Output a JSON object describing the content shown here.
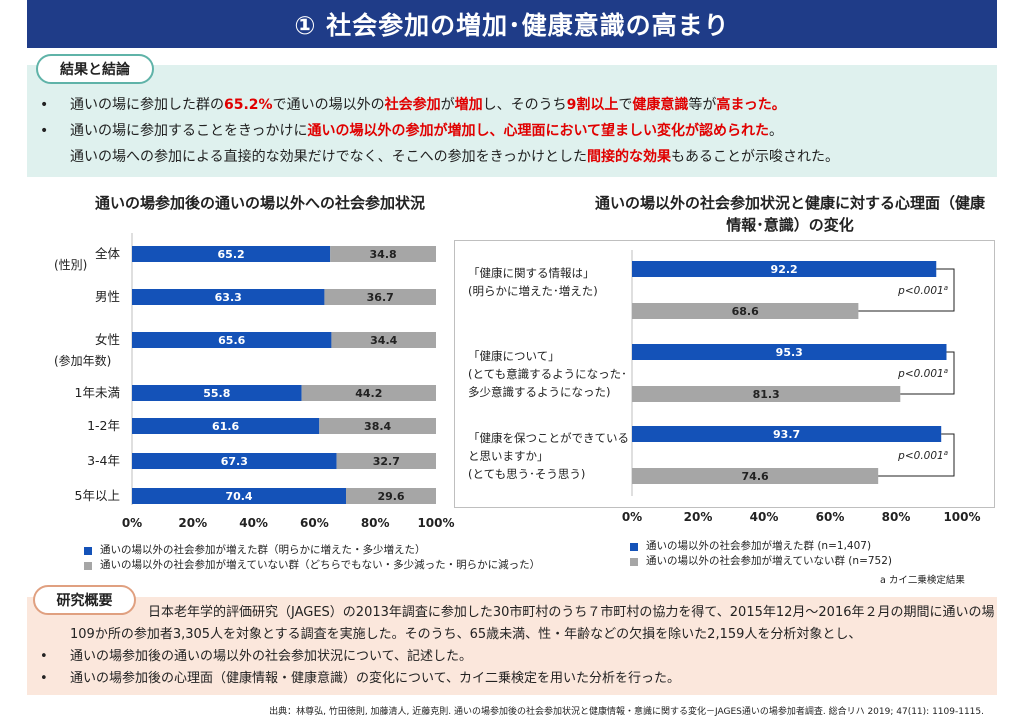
{
  "title": "① 社会参加の増加･健康意識の高まり",
  "results": {
    "badge": "結果と結論",
    "b1": {
      "t1": "通いの場に参加した群の",
      "e1": "65.2%",
      "t2": "で通いの場以外の",
      "e2": "社会参加",
      "t3": "が",
      "e3": "増加",
      "t4": "し、そのうち",
      "e4": "9割以上",
      "t5": "で",
      "e5": "健康意識",
      "t6": "等が",
      "e6": "高まった。"
    },
    "b2": {
      "t1": "通いの場に参加することをきっかけに",
      "e1": "通いの場以外の参加が増加し、心理面において望ましい変化が認められた",
      "t2": "。"
    },
    "b3": {
      "t1": "通いの場への参加による直接的な効果だけでなく、そこへの参加をきっかけとした",
      "e1": "間接的な効果",
      "t2": "もあることが示唆された。"
    }
  },
  "chart_data": [
    {
      "type": "bar",
      "orientation": "horizontal",
      "stacked": true,
      "title": "通いの場参加後の通いの場以外への社会参加状況",
      "categories": [
        "全体",
        "男性",
        "女性",
        "1年未満",
        "1-2年",
        "3-4年",
        "5年以上"
      ],
      "group_labels": [
        "(性別)",
        "(参加年数)"
      ],
      "series": [
        {
          "name": "通いの場以外の社会参加が増えた群（明らかに増えた・多少増えた）",
          "color": "#1452b8",
          "values": [
            65.2,
            63.3,
            65.6,
            55.8,
            61.6,
            67.3,
            70.4
          ]
        },
        {
          "name": "通いの場以外の社会参加が増えていない群（どちらでもない・多少減った・明らかに減った）",
          "color": "#a6a6a6",
          "values": [
            34.8,
            36.7,
            34.4,
            44.2,
            38.4,
            32.7,
            29.6
          ]
        }
      ],
      "xlim": [
        0,
        100
      ],
      "x_ticks": [
        "0%",
        "20%",
        "40%",
        "60%",
        "80%",
        "100%"
      ]
    },
    {
      "type": "bar",
      "orientation": "horizontal",
      "title": "通いの場以外の社会参加状況と健康に対する心理面（健康情報･意識）の変化",
      "categories": [
        {
          "lines": [
            "「健康に関する情報は」",
            "(明らかに増えた･増えた)"
          ]
        },
        {
          "lines": [
            "「健康について」",
            "(とても意識するようになった･",
            "多少意識するようになった)"
          ]
        },
        {
          "lines": [
            "「健康を保つことができている",
            "と思いますか」",
            "(とても思う･そう思う)"
          ]
        }
      ],
      "series": [
        {
          "name": "通いの場以外の社会参加が増えた群 (n=1,407)",
          "color": "#1452b8",
          "values": [
            92.2,
            95.3,
            93.7
          ]
        },
        {
          "name": "通いの場以外の社会参加が増えていない群 (n=752)",
          "color": "#a6a6a6",
          "values": [
            68.6,
            81.3,
            74.6
          ]
        }
      ],
      "annotations": [
        "p<0.001",
        "p<0.001",
        "p<0.001"
      ],
      "annotation_sup": "a",
      "xlim": [
        0,
        100
      ],
      "x_ticks": [
        "0%",
        "20%",
        "40%",
        "60%",
        "80%",
        "100%"
      ],
      "footnote": "a カイ二乗検定結果"
    }
  ],
  "study": {
    "badge": "研究概要",
    "lead1": "日本老年学的評価研究（JAGES）の2013年調査に参加した30市町村のうち７市町村の協力を得て、2015年12月〜2016年２月の期間に通いの場",
    "lead2": "109か所の参加者3,305人を対象とする調査を実施した。そのうち、65歳未満、性・年齢などの欠損を除いた2,159人を分析対象とし、",
    "b1": "通いの場参加後の通いの場以外の社会参加状況について、記述した。",
    "b2": "通いの場参加後の心理面（健康情報・健康意識）の変化について、カイ二乗検定を用いた分析を行った。"
  },
  "source": "出典：林尊弘, 竹田徳則, 加藤清人, 近藤克則. 通いの場参加後の社会参加状況と健康情報・意識に関する変化－JAGES通いの場参加者調査. 総合リハ 2019; 47(11): 1109-1115.",
  "bullet_char": "•"
}
